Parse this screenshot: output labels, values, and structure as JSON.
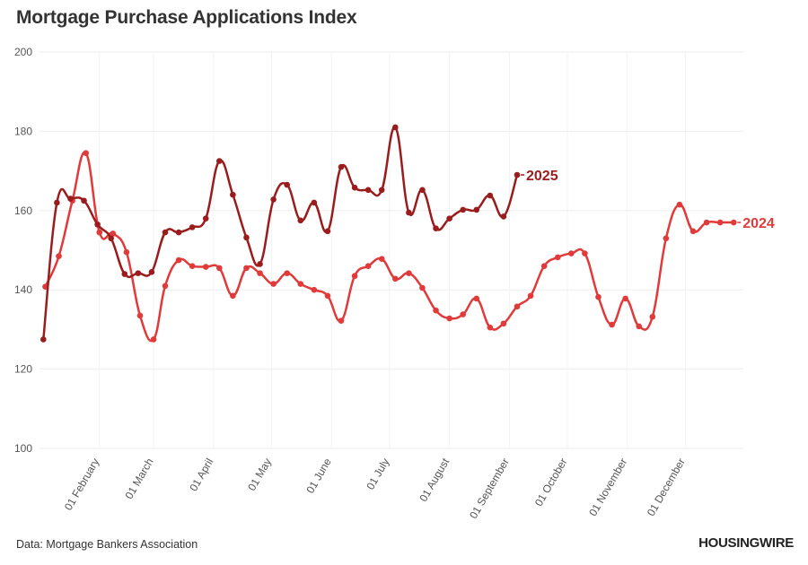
{
  "title": "Mortgage Purchase Applications Index",
  "source": "Data: Mortgage Bankers Association",
  "logo": "HOUSINGWIRE",
  "chart_data": {
    "type": "line",
    "title": "Mortgage Purchase Applications Index",
    "xlabel": "",
    "ylabel": "",
    "ylim": [
      100,
      200
    ],
    "yticks": [
      100,
      120,
      140,
      160,
      180,
      200
    ],
    "xlim": [
      "01 January",
      "31 December"
    ],
    "xticks": [
      "01 February",
      "01 March",
      "01 April",
      "01 May",
      "01 June",
      "01 July",
      "01 August",
      "01 September",
      "01 October",
      "01 November",
      "01 December"
    ],
    "grid": true,
    "series": [
      {
        "name": "2025",
        "color": "#9b1c1c",
        "x": [
          "01-03",
          "01-10",
          "01-17",
          "01-24",
          "01-31",
          "02-07",
          "02-14",
          "02-21",
          "02-28",
          "03-07",
          "03-14",
          "03-21",
          "03-28",
          "04-04",
          "04-11",
          "04-18",
          "04-25",
          "05-02",
          "05-09",
          "05-16",
          "05-23",
          "05-30",
          "06-06",
          "06-13",
          "06-20",
          "06-27",
          "07-04",
          "07-11",
          "07-18",
          "07-25",
          "08-01",
          "08-08",
          "08-15",
          "08-22",
          "08-29",
          "09-05"
        ],
        "values": [
          127.5,
          162.0,
          163.0,
          162.5,
          156.5,
          153.0,
          144.0,
          144.2,
          144.5,
          154.5,
          154.5,
          155.8,
          158.0,
          172.5,
          164.0,
          153.2,
          146.5,
          162.8,
          166.5,
          157.5,
          162.0,
          154.8,
          171.0,
          165.8,
          165.2,
          165.2,
          181.0,
          159.5,
          165.2,
          155.5,
          158.0,
          160.2,
          160.2,
          163.8,
          158.5,
          169.0
        ]
      },
      {
        "name": "2024",
        "color": "#e03a3a",
        "x": [
          "01-04",
          "01-11",
          "01-18",
          "01-25",
          "02-01",
          "02-08",
          "02-15",
          "02-22",
          "02-29",
          "03-07",
          "03-14",
          "03-21",
          "03-28",
          "04-04",
          "04-11",
          "04-18",
          "04-25",
          "05-02",
          "05-09",
          "05-16",
          "05-23",
          "05-30",
          "06-06",
          "06-13",
          "06-20",
          "06-27",
          "07-04",
          "07-11",
          "07-18",
          "07-25",
          "08-01",
          "08-08",
          "08-15",
          "08-22",
          "08-29",
          "09-05",
          "09-12",
          "09-19",
          "09-26",
          "10-03",
          "10-10",
          "10-17",
          "10-24",
          "10-31",
          "11-07",
          "11-14",
          "11-21",
          "11-28",
          "12-05",
          "12-12",
          "12-19",
          "12-26"
        ],
        "values": [
          140.8,
          148.5,
          162.5,
          174.5,
          154.5,
          154.2,
          149.5,
          133.5,
          127.5,
          141.0,
          147.5,
          146.0,
          145.8,
          145.5,
          138.5,
          145.5,
          144.2,
          141.5,
          144.2,
          141.5,
          140.0,
          138.5,
          132.2,
          143.5,
          146.0,
          147.8,
          142.8,
          144.2,
          140.5,
          134.8,
          132.8,
          133.8,
          137.8,
          130.5,
          131.5,
          135.8,
          138.5,
          146.0,
          148.2,
          149.2,
          149.2,
          138.2,
          131.2,
          137.8,
          130.8,
          133.2,
          153.0,
          161.5,
          154.8,
          157.0,
          157.0,
          157.0
        ]
      }
    ]
  }
}
